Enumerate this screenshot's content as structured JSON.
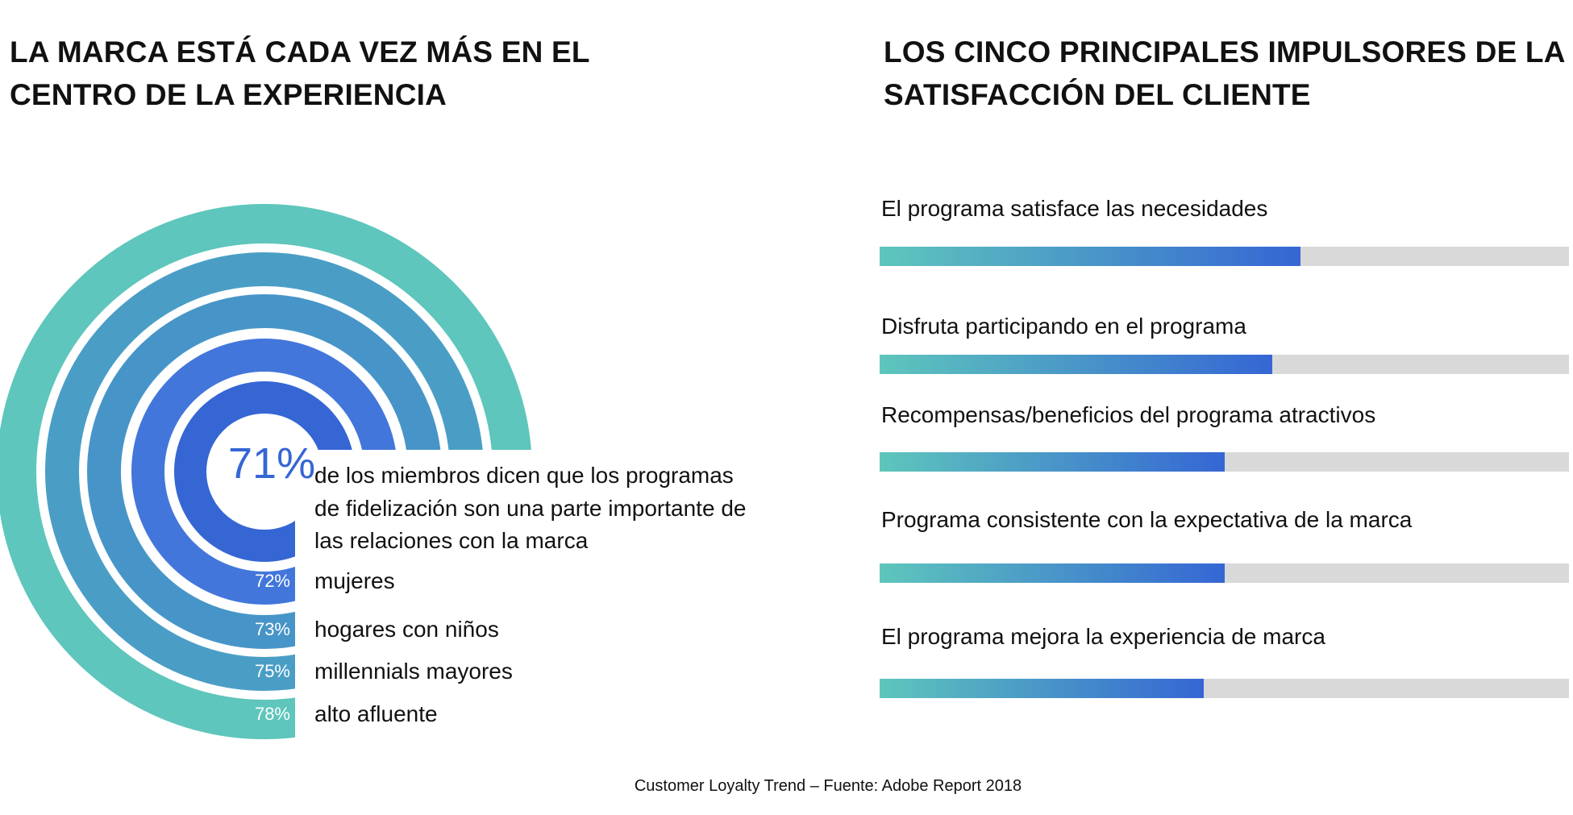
{
  "left_title": [
    "LA MARCA ESTÁ CADA VEZ MÁS EN EL",
    "CENTRO DE LA EXPERIENCIA"
  ],
  "right_title": [
    "LOS CINCO PRINCIPALES IMPULSORES DE LA",
    "SATISFACCIÓN DEL CLIENTE"
  ],
  "footer": "Customer Loyalty Trend – Fuente: Adobe Report 2018",
  "colors": {
    "teal": "#5ec6bc",
    "blue": "#3566d4",
    "track": "#d9d9d9"
  },
  "chart_data": [
    {
      "type": "radial-bar",
      "headline_value": "71%",
      "headline_text": [
        "de los miembros dicen que los programas",
        "de fidelización son una parte importante de",
        "las relaciones con la marca"
      ],
      "segments": [
        {
          "label": "",
          "value": 71,
          "value_label": "",
          "color": "#3566d4"
        },
        {
          "label": "mujeres",
          "value": 72,
          "value_label": "72%",
          "color": "#4276db"
        },
        {
          "label": "hogares con niños",
          "value": 73,
          "value_label": "73%",
          "color": "#4795c8"
        },
        {
          "label": "millennials mayores",
          "value": 75,
          "value_label": "75%",
          "color": "#4a9ec6"
        },
        {
          "label": "alto afluente",
          "value": 78,
          "value_label": "78%",
          "color": "#5ec6bc"
        }
      ]
    },
    {
      "type": "bar",
      "orientation": "horizontal",
      "categories": [
        "El programa satisface las necesidades",
        "Disfruta participando en el programa",
        "Recompensas/beneficios del programa atractivos",
        "Programa consistente con la expectativa de la marca",
        "El programa mejora la experiencia de marca"
      ],
      "values": [
        61,
        57,
        50,
        50,
        47
      ],
      "xlim": [
        0,
        100
      ]
    }
  ]
}
